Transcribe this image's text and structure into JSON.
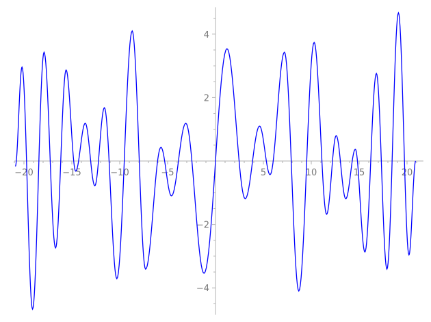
{
  "chart_data": {
    "type": "line",
    "title": "",
    "xlabel": "",
    "ylabel": "",
    "xlim": [
      -21,
      21.7
    ],
    "ylim": [
      -4.85,
      4.85
    ],
    "grid": false,
    "axes_style": "centered axes through origin",
    "line_color": "#0000ff",
    "axis_color": "#b0b0b0",
    "x_ticks": [
      -20,
      -15,
      -10,
      -5,
      5,
      10,
      15,
      20
    ],
    "x_tick_labels": [
      "−20",
      "−15",
      "−10",
      "−5",
      "5",
      "10",
      "15",
      "20"
    ],
    "y_ticks": [
      4,
      2,
      -2,
      -4
    ],
    "y_tick_labels": [
      "4",
      "2",
      "−2",
      "−4"
    ],
    "series": [
      {
        "points": [
          [
            -20.9,
            -0.17
          ],
          [
            -20.2,
            2.96
          ],
          [
            -19.1,
            -4.67
          ],
          [
            -17.9,
            3.43
          ],
          [
            -16.7,
            -2.74
          ],
          [
            -15.6,
            2.87
          ],
          [
            -14.6,
            -0.32
          ],
          [
            -13.6,
            1.19
          ],
          [
            -12.6,
            -0.78
          ],
          [
            -11.6,
            1.68
          ],
          [
            -10.3,
            -3.71
          ],
          [
            -8.7,
            4.1
          ],
          [
            -7.3,
            -3.41
          ],
          [
            -5.7,
            0.43
          ],
          [
            -4.6,
            -1.1
          ],
          [
            -3.1,
            1.19
          ],
          [
            -1.2,
            -3.54
          ],
          [
            1.2,
            3.54
          ],
          [
            3.1,
            -1.19
          ],
          [
            4.6,
            1.1
          ],
          [
            5.7,
            -0.43
          ],
          [
            7.2,
            3.43
          ],
          [
            8.7,
            -4.1
          ],
          [
            10.3,
            3.74
          ],
          [
            11.6,
            -1.68
          ],
          [
            12.6,
            0.8
          ],
          [
            13.6,
            -1.19
          ],
          [
            14.6,
            0.37
          ],
          [
            15.6,
            -2.87
          ],
          [
            16.8,
            2.76
          ],
          [
            17.9,
            -3.41
          ],
          [
            19.1,
            4.67
          ],
          [
            20.2,
            -2.96
          ],
          [
            20.9,
            0.0
          ]
        ]
      }
    ]
  }
}
